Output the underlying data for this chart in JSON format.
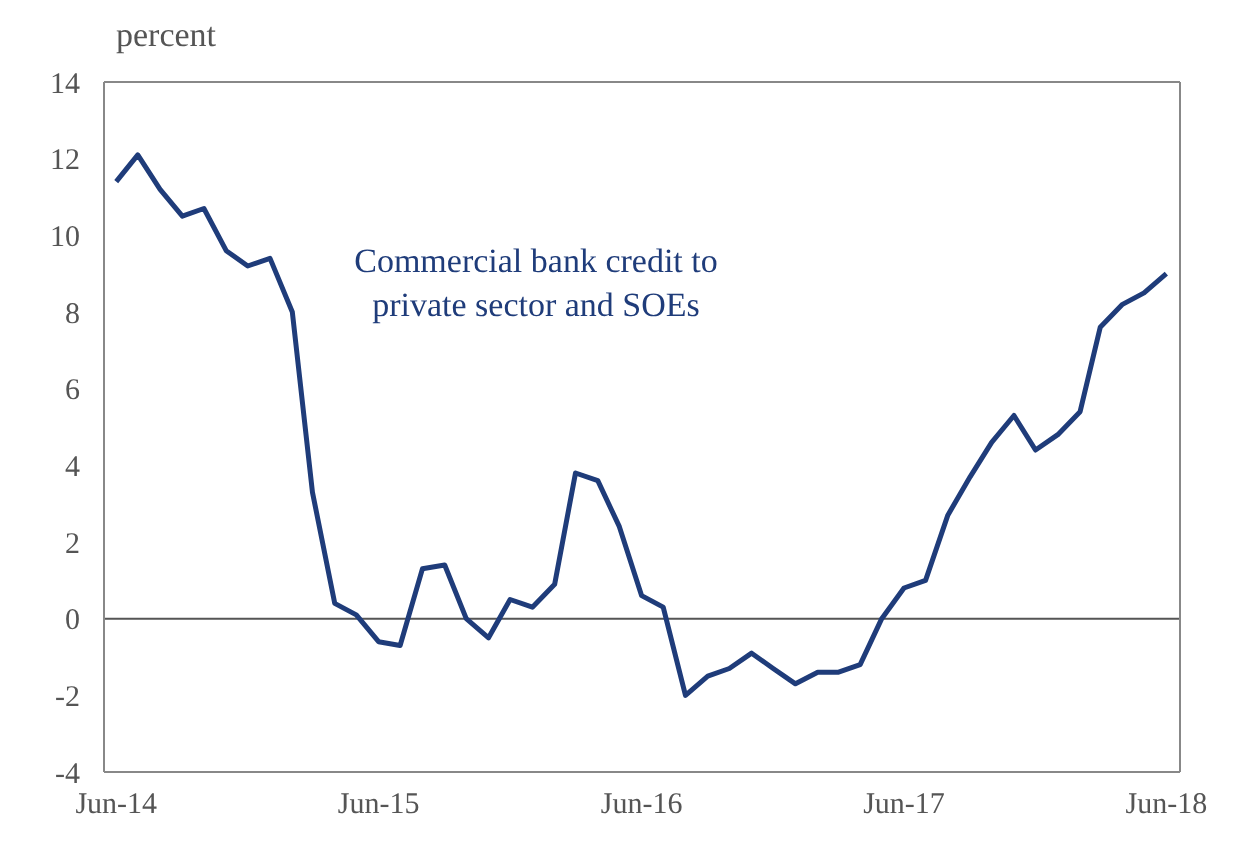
{
  "chart_data": {
    "type": "line",
    "ylabel": "percent",
    "x": [
      "2014-06",
      "2014-07",
      "2014-08",
      "2014-09",
      "2014-10",
      "2014-11",
      "2014-12",
      "2015-01",
      "2015-02",
      "2015-03",
      "2015-04",
      "2015-05",
      "2015-06",
      "2015-07",
      "2015-08",
      "2015-09",
      "2015-10",
      "2015-11",
      "2015-12",
      "2016-01",
      "2016-02",
      "2016-03",
      "2016-04",
      "2016-05",
      "2016-06",
      "2016-07",
      "2016-08",
      "2016-09",
      "2016-10",
      "2016-11",
      "2016-12",
      "2017-01",
      "2017-02",
      "2017-03",
      "2017-04",
      "2017-05",
      "2017-06",
      "2017-07",
      "2017-08",
      "2017-09",
      "2017-10",
      "2017-11",
      "2017-12",
      "2018-01",
      "2018-02",
      "2018-03",
      "2018-04",
      "2018-05",
      "2018-06"
    ],
    "series": [
      {
        "name": "Commercial bank credit to private sector and SOEs",
        "color": "#1f3c7a",
        "values": [
          11.4,
          12.1,
          11.2,
          10.5,
          10.7,
          9.6,
          9.2,
          9.4,
          8.0,
          3.3,
          0.4,
          0.1,
          -0.6,
          -0.7,
          1.3,
          1.4,
          0.0,
          -0.5,
          0.5,
          0.3,
          0.9,
          3.8,
          3.6,
          2.4,
          0.6,
          0.3,
          -2.0,
          -1.5,
          -1.3,
          -0.9,
          -1.3,
          -1.7,
          -1.4,
          -1.4,
          -1.2,
          0.0,
          0.8,
          1.0,
          2.7,
          3.7,
          4.6,
          5.3,
          4.4,
          4.8,
          5.4,
          7.6,
          8.2,
          8.5,
          9.0
        ]
      }
    ],
    "xlim": [
      "2014-05-15",
      "2018-06-20"
    ],
    "xticks": [
      {
        "value": "2014-06",
        "label": "Jun-14"
      },
      {
        "value": "2015-06",
        "label": "Jun-15"
      },
      {
        "value": "2016-06",
        "label": "Jun-16"
      },
      {
        "value": "2017-06",
        "label": "Jun-17"
      },
      {
        "value": "2018-06",
        "label": "Jun-18"
      }
    ],
    "ylim": [
      -4,
      14
    ],
    "yticks": [
      -4,
      -2,
      0,
      2,
      4,
      6,
      8,
      10,
      12,
      14
    ],
    "ref_lines": [
      {
        "axis": "y",
        "value": 0,
        "color": "#555555"
      }
    ],
    "grid": false,
    "marker": "none",
    "line_style": "solid"
  }
}
